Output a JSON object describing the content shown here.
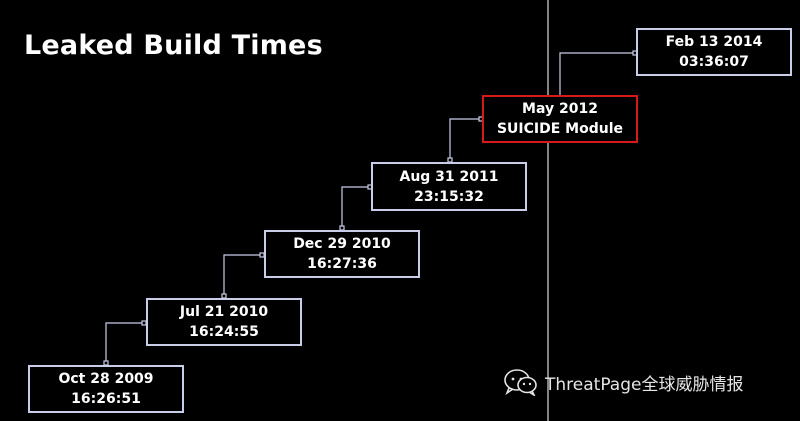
{
  "title": "Leaked Build Times",
  "colors": {
    "background": "#000000",
    "box_border": "#c8cde8",
    "highlight_border": "#d41a1a",
    "connector": "#c8cde8",
    "text": "#ffffff"
  },
  "nodes": [
    {
      "line1": "Oct 28 2009",
      "line2": "16:26:51",
      "highlight": false
    },
    {
      "line1": "Jul 21 2010",
      "line2": "16:24:55",
      "highlight": false
    },
    {
      "line1": "Dec 29 2010",
      "line2": "16:27:36",
      "highlight": false
    },
    {
      "line1": "Aug 31 2011",
      "line2": "23:15:32",
      "highlight": false
    },
    {
      "line1": "May 2012",
      "line2": "SUICIDE Module",
      "highlight": true
    },
    {
      "line1": "Feb 13 2014",
      "line2": "03:36:07",
      "highlight": false
    }
  ],
  "watermark": {
    "icon": "wechat-icon",
    "text": "ThreatPage全球威胁情报"
  }
}
